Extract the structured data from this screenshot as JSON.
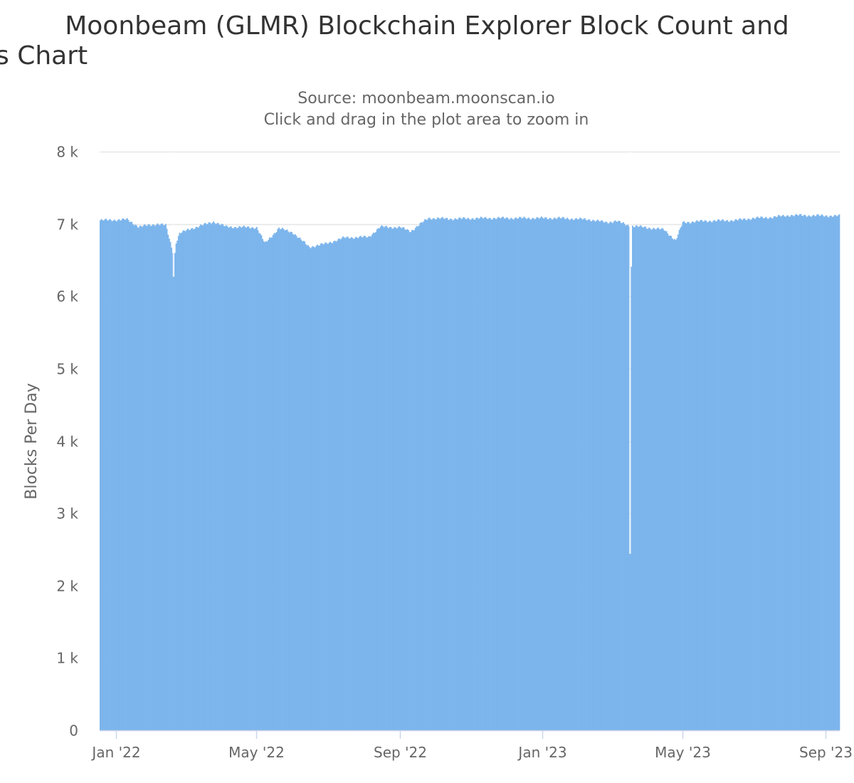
{
  "chart_data": {
    "type": "bar",
    "title_lines": [
      "Moonbeam (GLMR) Blockchain Explorer Block Count and",
      "s Chart"
    ],
    "subtitle_lines": [
      "Source: moonbeam.moonscan.io",
      "Click and drag in the plot area to zoom in"
    ],
    "ylabel": "Blocks Per Day",
    "xlabel": "",
    "ylim": [
      0,
      8000
    ],
    "y_ticks": [
      {
        "value": 0,
        "label": "0"
      },
      {
        "value": 1000,
        "label": "1 k"
      },
      {
        "value": 2000,
        "label": "2 k"
      },
      {
        "value": 3000,
        "label": "3 k"
      },
      {
        "value": 4000,
        "label": "4 k"
      },
      {
        "value": 5000,
        "label": "5 k"
      },
      {
        "value": 6000,
        "label": "6 k"
      },
      {
        "value": 7000,
        "label": "7 k"
      },
      {
        "value": 8000,
        "label": "8 k"
      }
    ],
    "x_range": [
      "2021-12-18",
      "2023-09-13"
    ],
    "x_ticks": [
      {
        "date": "2022-01-01",
        "label": "Jan '22"
      },
      {
        "date": "2022-05-01",
        "label": "May '22"
      },
      {
        "date": "2022-09-01",
        "label": "Sep '22"
      },
      {
        "date": "2023-01-01",
        "label": "Jan '23"
      },
      {
        "date": "2023-05-01",
        "label": "May '23"
      },
      {
        "date": "2023-09-01",
        "label": "Sep '23"
      }
    ],
    "grid": true,
    "legend": "none",
    "color": "#7cb5ec",
    "series_daily_profile": {
      "start_date": "2021-12-18",
      "end_date": "2023-09-12",
      "anchors": [
        {
          "date": "2021-12-18",
          "value": 7050
        },
        {
          "date": "2022-01-10",
          "value": 7060
        },
        {
          "date": "2022-01-20",
          "value": 6960
        },
        {
          "date": "2022-02-05",
          "value": 7000
        },
        {
          "date": "2022-02-12",
          "value": 6980
        },
        {
          "date": "2022-02-18",
          "value": 6620
        },
        {
          "date": "2022-02-24",
          "value": 6870
        },
        {
          "date": "2022-03-05",
          "value": 6930
        },
        {
          "date": "2022-03-25",
          "value": 7030
        },
        {
          "date": "2022-04-05",
          "value": 6960
        },
        {
          "date": "2022-05-01",
          "value": 6950
        },
        {
          "date": "2022-05-08",
          "value": 6730
        },
        {
          "date": "2022-05-20",
          "value": 6940
        },
        {
          "date": "2022-06-01",
          "value": 6880
        },
        {
          "date": "2022-06-15",
          "value": 6680
        },
        {
          "date": "2022-06-30",
          "value": 6730
        },
        {
          "date": "2022-07-15",
          "value": 6810
        },
        {
          "date": "2022-08-05",
          "value": 6820
        },
        {
          "date": "2022-08-15",
          "value": 6960
        },
        {
          "date": "2022-09-01",
          "value": 6950
        },
        {
          "date": "2022-09-10",
          "value": 6900
        },
        {
          "date": "2022-09-25",
          "value": 7080
        },
        {
          "date": "2022-10-15",
          "value": 7070
        },
        {
          "date": "2022-11-15",
          "value": 7080
        },
        {
          "date": "2023-01-15",
          "value": 7080
        },
        {
          "date": "2023-02-10",
          "value": 7060
        },
        {
          "date": "2023-02-25",
          "value": 7020
        },
        {
          "date": "2023-03-05",
          "value": 7040
        },
        {
          "date": "2023-03-15",
          "value": 6980
        },
        {
          "date": "2023-04-15",
          "value": 6920
        },
        {
          "date": "2023-04-25",
          "value": 6770
        },
        {
          "date": "2023-05-01",
          "value": 7020
        },
        {
          "date": "2023-05-20",
          "value": 7040
        },
        {
          "date": "2023-06-15",
          "value": 7050
        },
        {
          "date": "2023-07-01",
          "value": 7080
        },
        {
          "date": "2023-07-15",
          "value": 7090
        },
        {
          "date": "2023-08-01",
          "value": 7120
        },
        {
          "date": "2023-09-12",
          "value": 7110
        }
      ],
      "dips": [
        {
          "date": "2022-02-19",
          "value": 6270
        },
        {
          "date": "2022-02-20",
          "value": 6600
        },
        {
          "date": "2023-03-17",
          "value": 2440
        },
        {
          "date": "2023-03-18",
          "value": 6410
        }
      ]
    }
  }
}
